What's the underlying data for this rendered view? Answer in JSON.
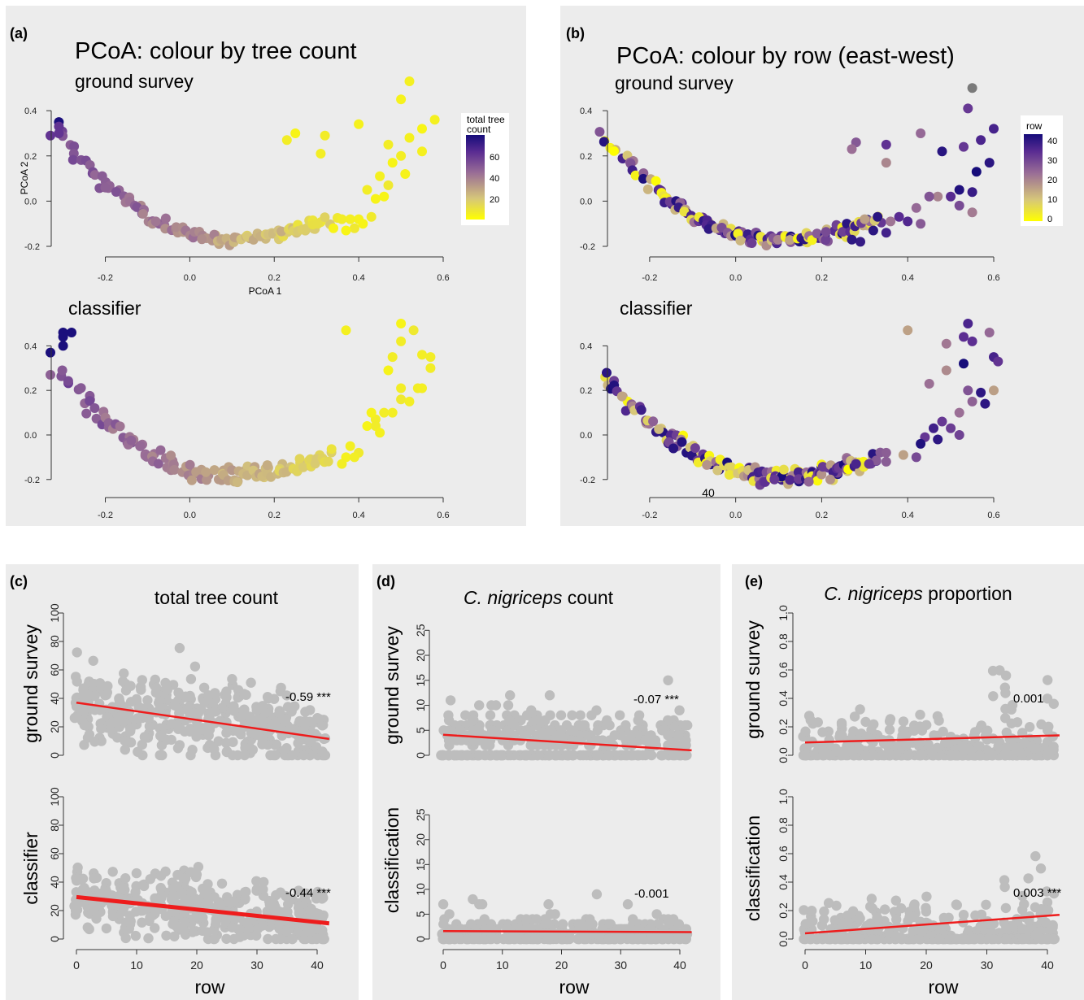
{
  "colors": {
    "panel_bg": "#ececec",
    "point_grey": "#bdbdbd",
    "fit_line": "#ee1c1c",
    "ramp": [
      "#ffff00",
      "#d6c67a",
      "#9a6e96",
      "#5a2c92",
      "#160c7a"
    ]
  },
  "chart_data": [
    {
      "id": "a",
      "label": "(a)",
      "type": "scatter",
      "title": "PCoA: colour by tree count",
      "legend": {
        "title_lines": [
          "total tree",
          "count"
        ],
        "ticks": [
          "60",
          "40",
          "20"
        ],
        "placement": "right"
      },
      "subplots": [
        {
          "subtitle": "ground survey",
          "xlabel": "PCoA 1",
          "ylabel": "PCoA 2",
          "xlim": [
            -0.33,
            0.6
          ],
          "ylim": [
            -0.2,
            0.53
          ],
          "xticks": [
            "-0.2",
            "0.0",
            "0.2",
            "0.4",
            "0.6"
          ],
          "yticks": [
            "-0.2",
            "0.0",
            "0.2",
            "0.4"
          ],
          "arc_points": 110,
          "scattered_points": [
            [
              0.52,
              0.53
            ],
            [
              0.5,
              0.45
            ],
            [
              0.23,
              0.27
            ],
            [
              0.25,
              0.3
            ],
            [
              0.32,
              0.29
            ],
            [
              0.4,
              0.34
            ],
            [
              0.31,
              0.21
            ],
            [
              0.58,
              0.36
            ],
            [
              0.55,
              0.32
            ],
            [
              0.47,
              0.25
            ],
            [
              0.52,
              0.28
            ],
            [
              0.5,
              0.2
            ],
            [
              0.55,
              0.22
            ],
            [
              0.48,
              0.17
            ],
            [
              0.45,
              0.11
            ],
            [
              0.51,
              0.12
            ],
            [
              0.42,
              0.05
            ],
            [
              0.47,
              0.07
            ],
            [
              0.44,
              0.01
            ],
            [
              0.46,
              0.02
            ],
            [
              0.36,
              -0.08
            ],
            [
              0.38,
              -0.08
            ],
            [
              0.39,
              -0.12
            ],
            [
              0.4,
              -0.08
            ],
            [
              0.41,
              -0.1
            ],
            [
              0.43,
              -0.07
            ],
            [
              0.37,
              -0.13
            ],
            [
              0.34,
              -0.12
            ],
            [
              -0.31,
              0.35
            ],
            [
              -0.31,
              0.33
            ],
            [
              -0.31,
              0.3
            ],
            [
              -0.33,
              0.29
            ],
            [
              -0.2,
              0.06
            ]
          ]
        },
        {
          "subtitle": "classifier",
          "xlabel": "",
          "ylabel": "",
          "xlim": [
            -0.33,
            0.6
          ],
          "ylim": [
            -0.23,
            0.5
          ],
          "xticks": [
            "-0.2",
            "0.0",
            "0.2",
            "0.4",
            "0.6"
          ],
          "yticks": [
            "-0.2",
            "0.0",
            "0.2",
            "0.4"
          ],
          "arc_points": 120,
          "scattered_points": [
            [
              0.37,
              0.47
            ],
            [
              0.5,
              0.5
            ],
            [
              0.5,
              0.42
            ],
            [
              0.53,
              0.47
            ],
            [
              0.55,
              0.36
            ],
            [
              0.48,
              0.35
            ],
            [
              0.47,
              0.29
            ],
            [
              0.5,
              0.21
            ],
            [
              0.54,
              0.21
            ],
            [
              0.57,
              0.35
            ],
            [
              0.57,
              0.3
            ],
            [
              0.5,
              0.16
            ],
            [
              0.52,
              0.15
            ],
            [
              0.55,
              0.21
            ],
            [
              0.46,
              0.1
            ],
            [
              0.44,
              0.07
            ],
            [
              0.48,
              0.1
            ],
            [
              0.43,
              0.1
            ],
            [
              0.42,
              0.04
            ],
            [
              0.44,
              0.04
            ],
            [
              0.45,
              0.01
            ],
            [
              0.4,
              -0.08
            ],
            [
              0.37,
              -0.1
            ],
            [
              0.38,
              -0.05
            ],
            [
              0.39,
              -0.1
            ],
            [
              0.36,
              -0.13
            ],
            [
              -0.3,
              0.46
            ],
            [
              -0.28,
              0.46
            ],
            [
              -0.3,
              0.44
            ],
            [
              -0.3,
              0.4
            ],
            [
              -0.33,
              0.37
            ],
            [
              -0.33,
              0.27
            ]
          ]
        }
      ]
    },
    {
      "id": "b",
      "label": "(b)",
      "type": "scatter",
      "title": "PCoA: colour by row (east-west)",
      "legend": {
        "title_lines": [
          "row"
        ],
        "ticks": [
          "40",
          "30",
          "20",
          "10",
          "0"
        ],
        "placement": "right"
      },
      "subplots": [
        {
          "subtitle": "ground survey",
          "xlabel": "",
          "ylabel": "",
          "xlim": [
            -0.23,
            0.6
          ],
          "ylim": [
            -0.2,
            0.53
          ],
          "xticks": [
            "-0.2",
            "0.0",
            "0.2",
            "0.4",
            "0.6"
          ],
          "yticks": [
            "-0.2",
            "0.0",
            "0.2",
            "0.4"
          ],
          "arc_points": 150,
          "scattered_points": [
            [
              0.55,
              0.5
            ],
            [
              0.54,
              0.41
            ],
            [
              0.6,
              0.32
            ],
            [
              0.43,
              0.3
            ],
            [
              0.35,
              0.25
            ],
            [
              0.28,
              0.26
            ],
            [
              0.27,
              0.23
            ],
            [
              0.35,
              0.17
            ],
            [
              0.48,
              0.22
            ],
            [
              0.53,
              0.24
            ],
            [
              0.57,
              0.27
            ],
            [
              0.59,
              0.17
            ],
            [
              0.56,
              0.13
            ],
            [
              0.52,
              0.05
            ],
            [
              0.55,
              0.04
            ],
            [
              0.47,
              0.02
            ],
            [
              0.5,
              0.02
            ],
            [
              0.52,
              -0.02
            ],
            [
              0.55,
              -0.05
            ],
            [
              0.45,
              0.02
            ],
            [
              0.42,
              -0.03
            ],
            [
              0.38,
              -0.07
            ],
            [
              0.36,
              -0.09
            ],
            [
              0.33,
              -0.07
            ],
            [
              0.3,
              -0.08
            ],
            [
              0.4,
              -0.09
            ],
            [
              0.43,
              -0.1
            ],
            [
              0.35,
              -0.14
            ],
            [
              0.32,
              -0.13
            ],
            [
              0.29,
              -0.18
            ],
            [
              0.27,
              -0.17
            ]
          ]
        },
        {
          "subtitle": "classifier",
          "xlabel": "",
          "ylabel": "",
          "xlim": [
            -0.23,
            0.6
          ],
          "ylim": [
            -0.23,
            0.5
          ],
          "xticks": [
            "-0.2",
            "0.0",
            "0.2",
            "0.4",
            "0.6"
          ],
          "yticks": [
            "-0.2",
            "0.0",
            "0.2",
            "0.4"
          ],
          "extra_text": "40",
          "arc_points": 160,
          "scattered_points": [
            [
              0.54,
              0.5
            ],
            [
              0.4,
              0.47
            ],
            [
              0.59,
              0.46
            ],
            [
              0.49,
              0.41
            ],
            [
              0.53,
              0.44
            ],
            [
              0.55,
              0.42
            ],
            [
              0.6,
              0.35
            ],
            [
              0.61,
              0.33
            ],
            [
              0.53,
              0.32
            ],
            [
              0.49,
              0.29
            ],
            [
              0.45,
              0.23
            ],
            [
              0.54,
              0.2
            ],
            [
              0.6,
              0.2
            ],
            [
              0.57,
              0.19
            ],
            [
              0.58,
              0.14
            ],
            [
              0.55,
              0.15
            ],
            [
              0.52,
              0.1
            ],
            [
              0.5,
              0.03
            ],
            [
              0.48,
              0.06
            ],
            [
              0.46,
              0.03
            ],
            [
              0.52,
              0.0
            ],
            [
              0.44,
              -0.01
            ],
            [
              0.47,
              -0.02
            ],
            [
              0.43,
              -0.04
            ],
            [
              0.42,
              -0.1
            ],
            [
              0.39,
              -0.09
            ],
            [
              0.35,
              -0.08
            ],
            [
              0.35,
              -0.12
            ],
            [
              0.31,
              -0.13
            ],
            [
              0.28,
              -0.13
            ],
            [
              0.22,
              -0.2
            ],
            [
              0.17,
              -0.21
            ],
            [
              0.09,
              -0.2
            ]
          ]
        }
      ]
    },
    {
      "id": "c",
      "label": "(c)",
      "type": "scatter",
      "title": "total tree count",
      "xlabel": "row",
      "xlim": [
        0,
        42
      ],
      "xticks": [
        "0",
        "10",
        "20",
        "30",
        "40"
      ],
      "subplots": [
        {
          "ylabel": "ground survey",
          "ylim": [
            0,
            100
          ],
          "yticks": [
            "0",
            "20",
            "40",
            "60",
            "80",
            "100"
          ],
          "annotation": "-0.59 ***",
          "fit": [
            37,
            11.5
          ],
          "fit_width": 2.5,
          "n_points": 420
        },
        {
          "ylabel": "classifier",
          "ylim": [
            0,
            100
          ],
          "yticks": [
            "0",
            "20",
            "40",
            "60",
            "80",
            "100"
          ],
          "annotation": "-0.44 ***",
          "fit": [
            29.5,
            11
          ],
          "fit_width": 5,
          "n_points": 420
        }
      ]
    },
    {
      "id": "d",
      "label": "(d)",
      "type": "scatter",
      "title_italic": "C. nigriceps",
      "title_rest": " count",
      "xlabel": "row",
      "xlim": [
        0,
        42
      ],
      "xticks": [
        "0",
        "10",
        "20",
        "30",
        "40"
      ],
      "subplots": [
        {
          "ylabel": "ground survey",
          "ylim": [
            0,
            27
          ],
          "yticks": [
            "0",
            "5",
            "10",
            "15",
            "20",
            "25"
          ],
          "annotation": "-0.07 ***",
          "fit": [
            4.1,
            1.0
          ],
          "fit_width": 2.5,
          "n_points": 420
        },
        {
          "ylabel": "classification",
          "ylim": [
            0,
            27
          ],
          "yticks": [
            "0",
            "5",
            "10",
            "15",
            "20",
            "25"
          ],
          "annotation": "-0.001",
          "fit": [
            1.6,
            1.4
          ],
          "fit_width": 2.5,
          "n_points": 420
        }
      ]
    },
    {
      "id": "e",
      "label": "(e)",
      "type": "scatter",
      "title_italic": "C. nigriceps",
      "title_rest": " proportion",
      "xlabel": "row",
      "xlim": [
        0,
        42
      ],
      "xticks": [
        "0",
        "10",
        "20",
        "30",
        "40"
      ],
      "subplots": [
        {
          "ylabel": "ground survey",
          "ylim": [
            0,
            1
          ],
          "yticks": [
            "0.0",
            "0.2",
            "0.4",
            "0.6",
            "0.8",
            "1.0"
          ],
          "annotation": "0.001",
          "fit": [
            0.09,
            0.14
          ],
          "fit_width": 2.5,
          "n_points": 420
        },
        {
          "ylabel": "classification",
          "ylim": [
            0,
            1
          ],
          "yticks": [
            "0.0",
            "0.2",
            "0.4",
            "0.6",
            "0.8",
            "1.0"
          ],
          "annotation": "0.003 ***",
          "fit": [
            0.04,
            0.17
          ],
          "fit_width": 2.5,
          "n_points": 420
        }
      ]
    }
  ]
}
